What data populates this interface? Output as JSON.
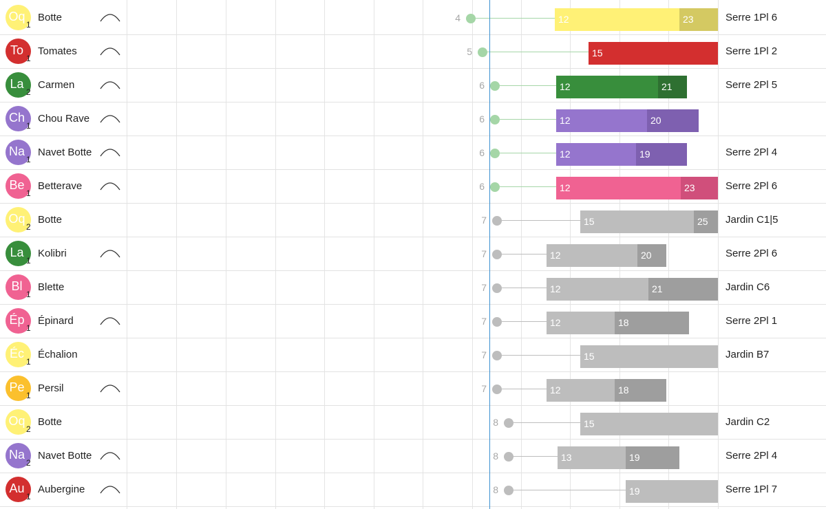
{
  "colors": {
    "yellow": "#fff176",
    "yellow_dark": "#d4c962",
    "red": "#d32f2f",
    "green": "#388e3c",
    "green_dark": "#2e7031",
    "purple": "#9575cd",
    "purple_dark": "#7e60b0",
    "pink": "#f06292",
    "pink_dark": "#d04f7b",
    "amber": "#fbc02d",
    "grey": "#bdbdbd",
    "grey_dark": "#9e9e9e",
    "stem_green": "#a5d6a7",
    "stem_grey": "#bdbdbd",
    "today_line": "#3a8fd0"
  },
  "rows": [
    {
      "code": "Oq",
      "count": "1",
      "name": "Botte",
      "icon": "arc-icon",
      "start": "4",
      "seg1": "12",
      "seg2": "23",
      "location": "Serre 1Pl 6",
      "color": "yellow"
    },
    {
      "code": "To",
      "count": "1",
      "name": "Tomates",
      "icon": "arc-icon",
      "start": "5",
      "seg1": "15",
      "seg2": "",
      "location": "Serre 1Pl 2",
      "color": "red"
    },
    {
      "code": "La",
      "count": "2",
      "name": "Carmen",
      "icon": "arc-icon",
      "start": "6",
      "seg1": "12",
      "seg2": "21",
      "location": "Serre 2Pl 5",
      "color": "green"
    },
    {
      "code": "Ch",
      "count": "1",
      "name": "Chou Rave",
      "icon": "arc-icon",
      "start": "6",
      "seg1": "12",
      "seg2": "20",
      "location": "",
      "color": "purple"
    },
    {
      "code": "Na",
      "count": "1",
      "name": "Navet Botte",
      "icon": "arc-icon",
      "start": "6",
      "seg1": "12",
      "seg2": "19",
      "location": "Serre 2Pl 4",
      "color": "purple"
    },
    {
      "code": "Be",
      "count": "1",
      "name": "Betterave",
      "icon": "arc-icon",
      "start": "6",
      "seg1": "12",
      "seg2": "23",
      "location": "Serre 2Pl 6",
      "color": "pink"
    },
    {
      "code": "Oq",
      "count": "2",
      "name": "Botte",
      "icon": "",
      "start": "7",
      "seg1": "15",
      "seg2": "25",
      "location": "Jardin C1|5",
      "color": "yellow"
    },
    {
      "code": "La",
      "count": "1",
      "name": "Kolibri",
      "icon": "arc-icon",
      "start": "7",
      "seg1": "12",
      "seg2": "20",
      "location": "Serre 2Pl 6",
      "color": "green"
    },
    {
      "code": "Bl",
      "count": "1",
      "name": "Blette",
      "icon": "",
      "start": "7",
      "seg1": "12",
      "seg2": "21",
      "location": "Jardin C6",
      "color": "pink"
    },
    {
      "code": "Ép",
      "count": "1",
      "name": "Épinard",
      "icon": "arc-icon",
      "start": "7",
      "seg1": "12",
      "seg2": "18",
      "location": "Serre 2Pl 1",
      "color": "pink"
    },
    {
      "code": "Éc",
      "count": "1",
      "name": "Échalion",
      "icon": "",
      "start": "7",
      "seg1": "15",
      "seg2": "",
      "location": "Jardin B7",
      "color": "yellow"
    },
    {
      "code": "Pe",
      "count": "1",
      "name": "Persil",
      "icon": "arc-icon",
      "start": "7",
      "seg1": "12",
      "seg2": "18",
      "location": "",
      "color": "amber"
    },
    {
      "code": "Oq",
      "count": "2",
      "name": "Botte",
      "icon": "",
      "start": "8",
      "seg1": "15",
      "seg2": "",
      "location": "Jardin C2",
      "color": "yellow"
    },
    {
      "code": "Na",
      "count": "2",
      "name": "Navet Botte",
      "icon": "arc-icon",
      "start": "8",
      "seg1": "13",
      "seg2": "19",
      "location": "Serre 2Pl 4",
      "color": "purple"
    },
    {
      "code": "Au",
      "count": "1",
      "name": "Aubergine",
      "icon": "arc-icon",
      "start": "8",
      "seg1": "19",
      "seg2": "",
      "location": "Serre 1Pl 7",
      "color": "red"
    }
  ]
}
